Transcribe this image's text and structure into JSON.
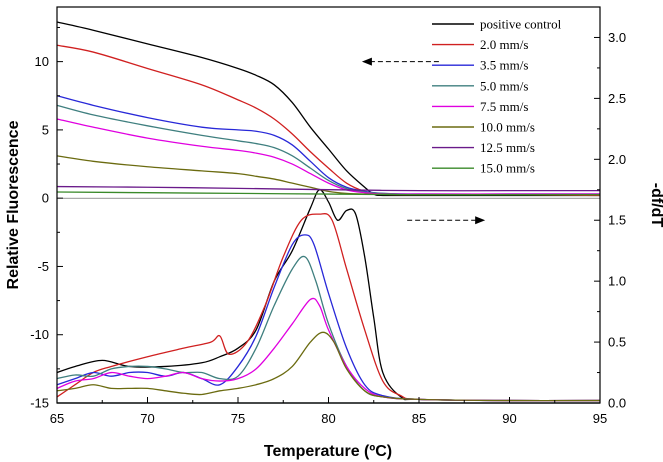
{
  "chart_data": {
    "type": "line",
    "xlabel": "Temperature (ºC)",
    "ylabel_left": "Relative Fluorescence",
    "ylabel_right": "-df/dT",
    "xlim": [
      65,
      95
    ],
    "ylim_left": [
      -15,
      14
    ],
    "ylim_right": [
      0,
      3.25
    ],
    "x_ticks": [
      65,
      70,
      75,
      80,
      85,
      90,
      95
    ],
    "y_left_ticks": [
      -15,
      -10,
      -5,
      0,
      5,
      10
    ],
    "y_right_ticks": [
      0.0,
      0.5,
      1.0,
      1.5,
      2.0,
      2.5,
      3.0
    ],
    "y_right_tick_labels": [
      "0.0",
      "0.5",
      "1.0",
      "1.5",
      "2.0",
      "2.5",
      "3.0"
    ],
    "legend_position": "top-right",
    "annotations": [
      {
        "type": "arrow",
        "direction": "left",
        "at": {
          "x": 84,
          "y": 10
        },
        "axis": "left"
      },
      {
        "type": "arrow",
        "direction": "right",
        "at": {
          "x": 86.5,
          "y": 1.5
        },
        "axis": "right"
      }
    ],
    "series": [
      {
        "name": "positive control",
        "color": "#000000",
        "fluorescence": [
          [
            65,
            12.9
          ],
          [
            67,
            12.3
          ],
          [
            70,
            11.3
          ],
          [
            73,
            10.3
          ],
          [
            75,
            9.5
          ],
          [
            76,
            9.0
          ],
          [
            77,
            8.3
          ],
          [
            78,
            7.0
          ],
          [
            79,
            5.2
          ],
          [
            80,
            3.6
          ],
          [
            81,
            2.0
          ],
          [
            82,
            0.8
          ],
          [
            82.5,
            0.3
          ],
          [
            83,
            0.2
          ],
          [
            85,
            0.2
          ],
          [
            90,
            0.2
          ],
          [
            95,
            0.2
          ]
        ],
        "derivative": [
          [
            65,
            0.25
          ],
          [
            66,
            0.3
          ],
          [
            67.5,
            0.35
          ],
          [
            69,
            0.3
          ],
          [
            71,
            0.3
          ],
          [
            73,
            0.33
          ],
          [
            74,
            0.38
          ],
          [
            75,
            0.45
          ],
          [
            76,
            0.6
          ],
          [
            77,
            1.0
          ],
          [
            78,
            1.25
          ],
          [
            79,
            1.6
          ],
          [
            79.5,
            1.75
          ],
          [
            80,
            1.65
          ],
          [
            80.5,
            1.5
          ],
          [
            81,
            1.58
          ],
          [
            81.5,
            1.55
          ],
          [
            82,
            1.2
          ],
          [
            82.5,
            0.7
          ],
          [
            83,
            0.25
          ],
          [
            84,
            0.05
          ],
          [
            85,
            0.03
          ],
          [
            90,
            0.02
          ],
          [
            95,
            0.02
          ]
        ]
      },
      {
        "name": "2.0 mm/s",
        "color": "#d02020",
        "fluorescence": [
          [
            65,
            11.2
          ],
          [
            67,
            10.7
          ],
          [
            70,
            9.5
          ],
          [
            73,
            8.3
          ],
          [
            75,
            7.2
          ],
          [
            76,
            6.6
          ],
          [
            77,
            5.8
          ],
          [
            78,
            4.7
          ],
          [
            79,
            3.4
          ],
          [
            80,
            2.2
          ],
          [
            81,
            1.1
          ],
          [
            82,
            0.5
          ],
          [
            83,
            0.3
          ],
          [
            85,
            0.25
          ],
          [
            90,
            0.25
          ],
          [
            95,
            0.2
          ]
        ],
        "derivative": [
          [
            65,
            0.05
          ],
          [
            66,
            0.15
          ],
          [
            67,
            0.25
          ],
          [
            68,
            0.3
          ],
          [
            70,
            0.38
          ],
          [
            72,
            0.45
          ],
          [
            73.5,
            0.5
          ],
          [
            74,
            0.55
          ],
          [
            74.5,
            0.4
          ],
          [
            75.5,
            0.5
          ],
          [
            76.5,
            0.8
          ],
          [
            77.5,
            1.2
          ],
          [
            78.5,
            1.5
          ],
          [
            79.5,
            1.55
          ],
          [
            80.2,
            1.5
          ],
          [
            81,
            1.1
          ],
          [
            82,
            0.6
          ],
          [
            83,
            0.18
          ],
          [
            84,
            0.06
          ],
          [
            85,
            0.03
          ],
          [
            90,
            0.02
          ],
          [
            95,
            0.02
          ]
        ]
      },
      {
        "name": "3.5 mm/s",
        "color": "#2828d8",
        "fluorescence": [
          [
            65,
            7.5
          ],
          [
            67,
            6.8
          ],
          [
            70,
            5.9
          ],
          [
            73,
            5.2
          ],
          [
            75,
            5.0
          ],
          [
            76,
            4.9
          ],
          [
            77,
            4.6
          ],
          [
            78,
            3.9
          ],
          [
            79,
            2.7
          ],
          [
            80,
            1.5
          ],
          [
            81,
            0.8
          ],
          [
            82,
            0.5
          ],
          [
            83,
            0.35
          ],
          [
            85,
            0.3
          ],
          [
            90,
            0.3
          ],
          [
            95,
            0.3
          ]
        ],
        "derivative": [
          [
            65,
            0.15
          ],
          [
            66,
            0.2
          ],
          [
            67,
            0.25
          ],
          [
            68,
            0.22
          ],
          [
            69,
            0.25
          ],
          [
            70,
            0.25
          ],
          [
            71,
            0.22
          ],
          [
            72,
            0.25
          ],
          [
            73,
            0.2
          ],
          [
            74,
            0.15
          ],
          [
            75,
            0.3
          ],
          [
            76,
            0.55
          ],
          [
            77,
            0.95
          ],
          [
            78,
            1.3
          ],
          [
            78.7,
            1.38
          ],
          [
            79.2,
            1.3
          ],
          [
            80,
            0.9
          ],
          [
            81,
            0.45
          ],
          [
            82,
            0.15
          ],
          [
            83,
            0.06
          ],
          [
            85,
            0.03
          ],
          [
            90,
            0.02
          ],
          [
            95,
            0.02
          ]
        ]
      },
      {
        "name": "5.0 mm/s",
        "color": "#3f7f7f",
        "fluorescence": [
          [
            65,
            6.8
          ],
          [
            67,
            6.1
          ],
          [
            70,
            5.3
          ],
          [
            73,
            4.6
          ],
          [
            75,
            4.2
          ],
          [
            76,
            4.0
          ],
          [
            77,
            3.7
          ],
          [
            78,
            3.1
          ],
          [
            79,
            2.2
          ],
          [
            80,
            1.3
          ],
          [
            81,
            0.7
          ],
          [
            82,
            0.45
          ],
          [
            83,
            0.35
          ],
          [
            85,
            0.3
          ],
          [
            90,
            0.3
          ],
          [
            95,
            0.3
          ]
        ],
        "derivative": [
          [
            65,
            0.2
          ],
          [
            66,
            0.23
          ],
          [
            67,
            0.22
          ],
          [
            68,
            0.28
          ],
          [
            69,
            0.3
          ],
          [
            70,
            0.3
          ],
          [
            71,
            0.28
          ],
          [
            72,
            0.25
          ],
          [
            73,
            0.25
          ],
          [
            74,
            0.2
          ],
          [
            75,
            0.22
          ],
          [
            76,
            0.45
          ],
          [
            77,
            0.8
          ],
          [
            78,
            1.1
          ],
          [
            78.7,
            1.2
          ],
          [
            79.3,
            1.0
          ],
          [
            80,
            0.65
          ],
          [
            81,
            0.3
          ],
          [
            82,
            0.1
          ],
          [
            83,
            0.05
          ],
          [
            85,
            0.03
          ],
          [
            90,
            0.02
          ],
          [
            95,
            0.02
          ]
        ]
      },
      {
        "name": "7.5 mm/s",
        "color": "#e000e0",
        "fluorescence": [
          [
            65,
            5.8
          ],
          [
            67,
            5.2
          ],
          [
            70,
            4.4
          ],
          [
            73,
            3.8
          ],
          [
            75,
            3.5
          ],
          [
            76,
            3.3
          ],
          [
            77,
            3.0
          ],
          [
            78,
            2.5
          ],
          [
            79,
            1.8
          ],
          [
            80,
            1.1
          ],
          [
            81,
            0.6
          ],
          [
            82,
            0.4
          ],
          [
            83,
            0.3
          ],
          [
            85,
            0.3
          ],
          [
            90,
            0.3
          ],
          [
            95,
            0.3
          ]
        ],
        "derivative": [
          [
            65,
            0.12
          ],
          [
            66,
            0.18
          ],
          [
            67,
            0.2
          ],
          [
            68,
            0.25
          ],
          [
            69,
            0.22
          ],
          [
            70,
            0.2
          ],
          [
            71,
            0.22
          ],
          [
            72,
            0.25
          ],
          [
            73,
            0.2
          ],
          [
            74,
            0.18
          ],
          [
            75,
            0.2
          ],
          [
            76,
            0.28
          ],
          [
            77,
            0.45
          ],
          [
            78,
            0.65
          ],
          [
            79,
            0.85
          ],
          [
            79.5,
            0.8
          ],
          [
            80,
            0.6
          ],
          [
            81,
            0.3
          ],
          [
            82,
            0.12
          ],
          [
            83,
            0.05
          ],
          [
            85,
            0.03
          ],
          [
            90,
            0.02
          ],
          [
            95,
            0.02
          ]
        ]
      },
      {
        "name": "10.0 mm/s",
        "color": "#6b6b10",
        "fluorescence": [
          [
            65,
            3.1
          ],
          [
            67,
            2.7
          ],
          [
            70,
            2.3
          ],
          [
            73,
            2.0
          ],
          [
            75,
            1.8
          ],
          [
            76,
            1.6
          ],
          [
            77,
            1.4
          ],
          [
            78,
            1.1
          ],
          [
            79,
            0.8
          ],
          [
            80,
            0.5
          ],
          [
            81,
            0.35
          ],
          [
            82,
            0.3
          ],
          [
            85,
            0.25
          ],
          [
            90,
            0.25
          ],
          [
            95,
            0.25
          ]
        ],
        "derivative": [
          [
            65,
            0.1
          ],
          [
            66,
            0.12
          ],
          [
            67,
            0.15
          ],
          [
            68,
            0.12
          ],
          [
            69,
            0.12
          ],
          [
            70,
            0.12
          ],
          [
            71,
            0.1
          ],
          [
            72,
            0.08
          ],
          [
            73,
            0.07
          ],
          [
            74,
            0.1
          ],
          [
            75,
            0.12
          ],
          [
            76,
            0.15
          ],
          [
            77,
            0.2
          ],
          [
            78,
            0.3
          ],
          [
            79,
            0.5
          ],
          [
            79.7,
            0.58
          ],
          [
            80.3,
            0.5
          ],
          [
            81,
            0.28
          ],
          [
            82,
            0.1
          ],
          [
            83,
            0.05
          ],
          [
            85,
            0.03
          ],
          [
            90,
            0.02
          ],
          [
            95,
            0.02
          ]
        ]
      },
      {
        "name": "12.5 mm/s",
        "color": "#6a1a8a",
        "fluorescence": [
          [
            65,
            0.85
          ],
          [
            70,
            0.8
          ],
          [
            75,
            0.72
          ],
          [
            80,
            0.62
          ],
          [
            85,
            0.55
          ],
          [
            90,
            0.55
          ],
          [
            95,
            0.55
          ]
        ],
        "derivative": [
          [
            65,
            0.0
          ],
          [
            75,
            0.0
          ],
          [
            85,
            0.0
          ],
          [
            95,
            0.0
          ]
        ]
      },
      {
        "name": "15.0 mm/s",
        "color": "#3a8a2a",
        "fluorescence": [
          [
            65,
            0.45
          ],
          [
            70,
            0.4
          ],
          [
            75,
            0.35
          ],
          [
            80,
            0.3
          ],
          [
            85,
            0.25
          ],
          [
            90,
            0.25
          ],
          [
            95,
            0.25
          ]
        ],
        "derivative": [
          [
            65,
            0.0
          ],
          [
            75,
            0.0
          ],
          [
            85,
            0.0
          ],
          [
            95,
            0.0
          ]
        ]
      }
    ]
  }
}
